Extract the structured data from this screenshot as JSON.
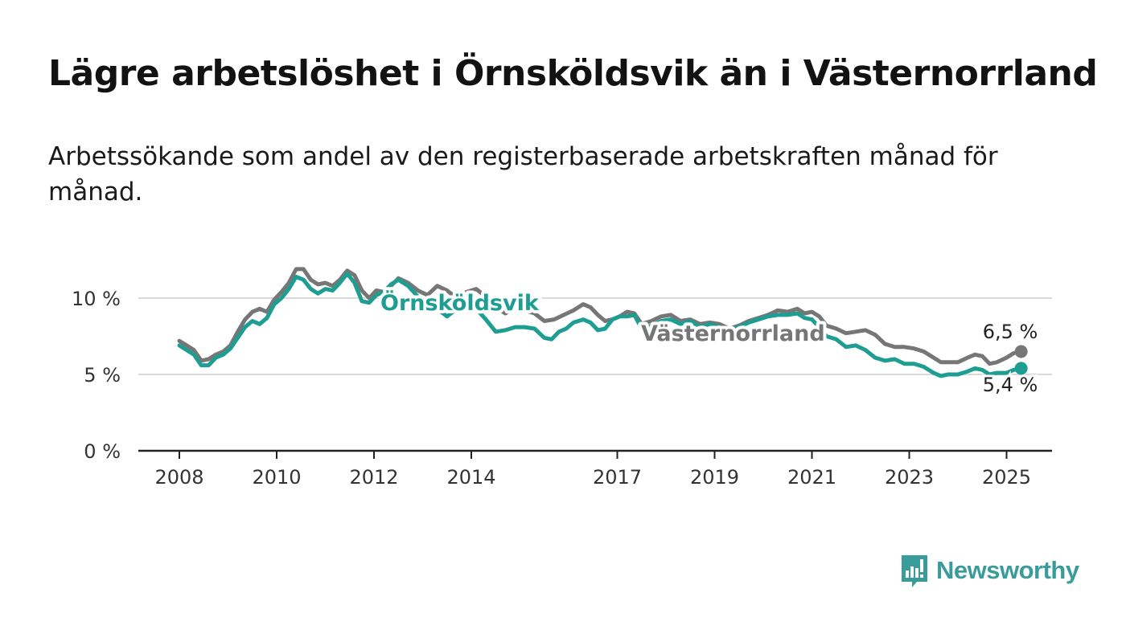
{
  "header": {
    "title": "Lägre arbetslöshet i Örnsköldsvik än i Västernorrland",
    "subtitle": "Arbetssökande som andel av den registerbaserade arbetskraften månad för månad."
  },
  "brand": {
    "name": "Newsworthy",
    "icon": "bar-chart-speech-bubble-icon",
    "color": "#3a9b9b"
  },
  "chart_data": {
    "type": "line",
    "y_ticks": [
      "0 %",
      "5 %",
      "10 %"
    ],
    "x_ticks": [
      "2008",
      "2010",
      "2012",
      "2014",
      "2017",
      "2019",
      "2021",
      "2023",
      "2025"
    ],
    "ylim": [
      0,
      12
    ],
    "grid": "horizontal",
    "series": [
      {
        "name": "Västernorrland",
        "color": "#767676",
        "end_label": "6,5 %",
        "points": [
          [
            2008.0,
            7.2
          ],
          [
            2008.15,
            6.9
          ],
          [
            2008.3,
            6.6
          ],
          [
            2008.45,
            5.9
          ],
          [
            2008.6,
            6.0
          ],
          [
            2008.75,
            6.3
          ],
          [
            2008.9,
            6.5
          ],
          [
            2009.05,
            6.9
          ],
          [
            2009.2,
            7.8
          ],
          [
            2009.35,
            8.6
          ],
          [
            2009.5,
            9.1
          ],
          [
            2009.65,
            9.3
          ],
          [
            2009.8,
            9.1
          ],
          [
            2009.95,
            9.9
          ],
          [
            2010.1,
            10.4
          ],
          [
            2010.25,
            11.0
          ],
          [
            2010.4,
            11.9
          ],
          [
            2010.55,
            11.9
          ],
          [
            2010.7,
            11.2
          ],
          [
            2010.85,
            10.9
          ],
          [
            2011.0,
            11.0
          ],
          [
            2011.15,
            10.8
          ],
          [
            2011.3,
            11.2
          ],
          [
            2011.45,
            11.8
          ],
          [
            2011.6,
            11.5
          ],
          [
            2011.75,
            10.5
          ],
          [
            2011.9,
            10.0
          ],
          [
            2012.05,
            10.5
          ],
          [
            2012.2,
            10.4
          ],
          [
            2012.35,
            10.8
          ],
          [
            2012.5,
            11.3
          ],
          [
            2012.7,
            11.0
          ],
          [
            2012.9,
            10.5
          ],
          [
            2013.1,
            10.2
          ],
          [
            2013.3,
            10.8
          ],
          [
            2013.5,
            10.5
          ],
          [
            2013.7,
            10.0
          ],
          [
            2013.9,
            10.4
          ],
          [
            2014.1,
            10.6
          ],
          [
            2014.3,
            10.1
          ],
          [
            2014.5,
            9.4
          ],
          [
            2014.7,
            9.0
          ],
          [
            2014.9,
            9.4
          ],
          [
            2015.1,
            9.2
          ],
          [
            2015.3,
            9.0
          ],
          [
            2015.5,
            8.5
          ],
          [
            2015.7,
            8.6
          ],
          [
            2015.9,
            8.9
          ],
          [
            2016.1,
            9.2
          ],
          [
            2016.3,
            9.6
          ],
          [
            2016.45,
            9.4
          ],
          [
            2016.6,
            8.9
          ],
          [
            2016.75,
            8.5
          ],
          [
            2016.9,
            8.6
          ],
          [
            2017.05,
            8.8
          ],
          [
            2017.2,
            9.1
          ],
          [
            2017.35,
            9.0
          ],
          [
            2017.5,
            8.3
          ],
          [
            2017.7,
            8.5
          ],
          [
            2017.9,
            8.8
          ],
          [
            2018.1,
            8.9
          ],
          [
            2018.3,
            8.5
          ],
          [
            2018.5,
            8.6
          ],
          [
            2018.7,
            8.3
          ],
          [
            2018.9,
            8.4
          ],
          [
            2019.1,
            8.3
          ],
          [
            2019.3,
            8.0
          ],
          [
            2019.5,
            8.2
          ],
          [
            2019.7,
            8.5
          ],
          [
            2019.9,
            8.7
          ],
          [
            2020.1,
            8.9
          ],
          [
            2020.3,
            9.2
          ],
          [
            2020.5,
            9.1
          ],
          [
            2020.7,
            9.3
          ],
          [
            2020.85,
            9.0
          ],
          [
            2021.0,
            9.1
          ],
          [
            2021.15,
            8.8
          ],
          [
            2021.3,
            8.2
          ],
          [
            2021.5,
            8.0
          ],
          [
            2021.7,
            7.7
          ],
          [
            2021.9,
            7.8
          ],
          [
            2022.1,
            7.9
          ],
          [
            2022.3,
            7.6
          ],
          [
            2022.5,
            7.0
          ],
          [
            2022.7,
            6.8
          ],
          [
            2022.9,
            6.8
          ],
          [
            2023.1,
            6.7
          ],
          [
            2023.3,
            6.5
          ],
          [
            2023.5,
            6.1
          ],
          [
            2023.65,
            5.8
          ],
          [
            2023.8,
            5.8
          ],
          [
            2024.0,
            5.8
          ],
          [
            2024.2,
            6.1
          ],
          [
            2024.35,
            6.3
          ],
          [
            2024.5,
            6.2
          ],
          [
            2024.65,
            5.7
          ],
          [
            2024.8,
            5.8
          ],
          [
            2025.0,
            6.1
          ],
          [
            2025.15,
            6.4
          ],
          [
            2025.3,
            6.5
          ]
        ]
      },
      {
        "name": "Örnsköldsvik",
        "color": "#1e9e93",
        "end_label": "5,4 %",
        "points": [
          [
            2008.0,
            6.9
          ],
          [
            2008.15,
            6.6
          ],
          [
            2008.3,
            6.3
          ],
          [
            2008.45,
            5.6
          ],
          [
            2008.6,
            5.6
          ],
          [
            2008.75,
            6.1
          ],
          [
            2008.9,
            6.3
          ],
          [
            2009.05,
            6.7
          ],
          [
            2009.2,
            7.4
          ],
          [
            2009.35,
            8.1
          ],
          [
            2009.5,
            8.5
          ],
          [
            2009.65,
            8.3
          ],
          [
            2009.8,
            8.7
          ],
          [
            2009.95,
            9.6
          ],
          [
            2010.1,
            10.0
          ],
          [
            2010.25,
            10.6
          ],
          [
            2010.4,
            11.4
          ],
          [
            2010.55,
            11.2
          ],
          [
            2010.7,
            10.6
          ],
          [
            2010.85,
            10.3
          ],
          [
            2011.0,
            10.6
          ],
          [
            2011.15,
            10.5
          ],
          [
            2011.3,
            11.0
          ],
          [
            2011.45,
            11.6
          ],
          [
            2011.6,
            11.0
          ],
          [
            2011.75,
            9.8
          ],
          [
            2011.9,
            9.7
          ],
          [
            2012.05,
            10.2
          ],
          [
            2012.2,
            10.4
          ],
          [
            2012.35,
            10.9
          ],
          [
            2012.5,
            11.2
          ],
          [
            2012.7,
            10.8
          ],
          [
            2012.9,
            10.1
          ],
          [
            2013.1,
            9.6
          ],
          [
            2013.3,
            9.3
          ],
          [
            2013.5,
            8.8
          ],
          [
            2013.7,
            9.3
          ],
          [
            2013.9,
            9.6
          ],
          [
            2014.1,
            9.3
          ],
          [
            2014.3,
            8.6
          ],
          [
            2014.5,
            7.8
          ],
          [
            2014.7,
            7.9
          ],
          [
            2014.9,
            8.1
          ],
          [
            2015.1,
            8.1
          ],
          [
            2015.3,
            8.0
          ],
          [
            2015.5,
            7.4
          ],
          [
            2015.65,
            7.3
          ],
          [
            2015.8,
            7.8
          ],
          [
            2015.95,
            8.0
          ],
          [
            2016.1,
            8.4
          ],
          [
            2016.3,
            8.6
          ],
          [
            2016.45,
            8.4
          ],
          [
            2016.6,
            7.9
          ],
          [
            2016.75,
            8.0
          ],
          [
            2016.9,
            8.6
          ],
          [
            2017.05,
            8.8
          ],
          [
            2017.2,
            8.8
          ],
          [
            2017.35,
            8.9
          ],
          [
            2017.5,
            8.0
          ],
          [
            2017.7,
            8.2
          ],
          [
            2017.9,
            8.5
          ],
          [
            2018.1,
            8.6
          ],
          [
            2018.3,
            8.3
          ],
          [
            2018.5,
            8.5
          ],
          [
            2018.7,
            8.1
          ],
          [
            2018.9,
            8.3
          ],
          [
            2019.1,
            8.1
          ],
          [
            2019.3,
            7.9
          ],
          [
            2019.5,
            8.1
          ],
          [
            2019.7,
            8.4
          ],
          [
            2019.9,
            8.6
          ],
          [
            2020.1,
            8.8
          ],
          [
            2020.3,
            8.9
          ],
          [
            2020.5,
            8.9
          ],
          [
            2020.7,
            9.0
          ],
          [
            2020.85,
            8.7
          ],
          [
            2021.0,
            8.6
          ],
          [
            2021.15,
            8.1
          ],
          [
            2021.3,
            7.5
          ],
          [
            2021.5,
            7.3
          ],
          [
            2021.7,
            6.8
          ],
          [
            2021.9,
            6.9
          ],
          [
            2022.1,
            6.6
          ],
          [
            2022.3,
            6.1
          ],
          [
            2022.5,
            5.9
          ],
          [
            2022.7,
            6.0
          ],
          [
            2022.9,
            5.7
          ],
          [
            2023.1,
            5.7
          ],
          [
            2023.3,
            5.5
          ],
          [
            2023.5,
            5.1
          ],
          [
            2023.65,
            4.9
          ],
          [
            2023.8,
            5.0
          ],
          [
            2024.0,
            5.0
          ],
          [
            2024.2,
            5.2
          ],
          [
            2024.35,
            5.4
          ],
          [
            2024.5,
            5.3
          ],
          [
            2024.65,
            5.0
          ],
          [
            2024.8,
            5.1
          ],
          [
            2025.0,
            5.1
          ],
          [
            2025.15,
            5.3
          ],
          [
            2025.3,
            5.4
          ]
        ]
      }
    ]
  }
}
